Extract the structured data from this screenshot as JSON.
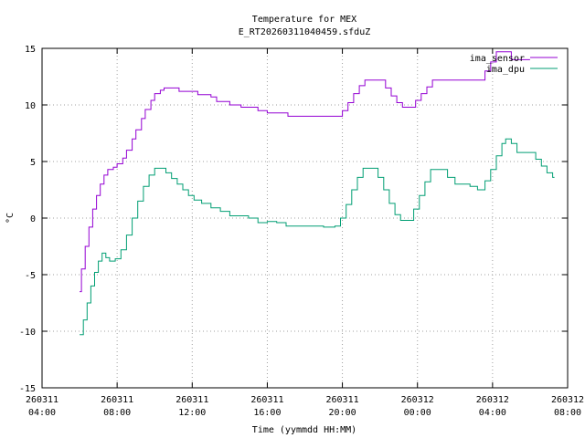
{
  "chart_data": {
    "type": "line",
    "title": "Temperature for MEX",
    "subtitle": "E_RT20260311040459.sfduZ",
    "xlabel": "Time (yymmdd HH:MM)",
    "ylabel": "°C",
    "ylim": [
      -15,
      15
    ],
    "yticks": [
      -15,
      -10,
      -5,
      0,
      5,
      10,
      15
    ],
    "ytick_labels": [
      "-15",
      "-10",
      "-5",
      "0",
      "5",
      "10",
      "15"
    ],
    "xlim": [
      4,
      32
    ],
    "xticks": [
      4,
      8,
      12,
      16,
      20,
      24,
      28,
      32
    ],
    "xtick_labels": [
      [
        "260311",
        "04:00"
      ],
      [
        "260311",
        "08:00"
      ],
      [
        "260311",
        "12:00"
      ],
      [
        "260311",
        "16:00"
      ],
      [
        "260311",
        "20:00"
      ],
      [
        "260312",
        "00:00"
      ],
      [
        "260312",
        "04:00"
      ],
      [
        "260312",
        "08:00"
      ]
    ],
    "grid": true,
    "legend_position": "top-right",
    "series": [
      {
        "name": "ima_sensor",
        "color": "#9400d3",
        "step": true,
        "points": [
          [
            6.0,
            -6.5
          ],
          [
            6.1,
            -4.5
          ],
          [
            6.3,
            -2.5
          ],
          [
            6.5,
            -0.8
          ],
          [
            6.7,
            0.8
          ],
          [
            6.9,
            2.0
          ],
          [
            7.1,
            3.0
          ],
          [
            7.3,
            3.8
          ],
          [
            7.5,
            4.3
          ],
          [
            7.8,
            4.5
          ],
          [
            8.0,
            4.8
          ],
          [
            8.3,
            5.3
          ],
          [
            8.5,
            6.0
          ],
          [
            8.8,
            7.0
          ],
          [
            9.0,
            7.8
          ],
          [
            9.3,
            8.8
          ],
          [
            9.5,
            9.6
          ],
          [
            9.8,
            10.4
          ],
          [
            10.0,
            11.0
          ],
          [
            10.3,
            11.3
          ],
          [
            10.5,
            11.5
          ],
          [
            11.0,
            11.5
          ],
          [
            11.3,
            11.2
          ],
          [
            12.0,
            11.2
          ],
          [
            12.3,
            10.9
          ],
          [
            13.0,
            10.7
          ],
          [
            13.3,
            10.3
          ],
          [
            14.0,
            10.0
          ],
          [
            14.6,
            9.8
          ],
          [
            15.5,
            9.5
          ],
          [
            16.0,
            9.3
          ],
          [
            16.8,
            9.3
          ],
          [
            17.1,
            9.0
          ],
          [
            18.5,
            9.0
          ],
          [
            19.5,
            9.0
          ],
          [
            19.9,
            9.0
          ],
          [
            20.0,
            9.5
          ],
          [
            20.3,
            10.2
          ],
          [
            20.6,
            11.0
          ],
          [
            20.9,
            11.7
          ],
          [
            21.2,
            12.2
          ],
          [
            22.0,
            12.2
          ],
          [
            22.3,
            11.5
          ],
          [
            22.6,
            10.8
          ],
          [
            22.9,
            10.2
          ],
          [
            23.2,
            9.8
          ],
          [
            23.6,
            9.8
          ],
          [
            23.9,
            10.4
          ],
          [
            24.2,
            11.0
          ],
          [
            24.5,
            11.6
          ],
          [
            24.8,
            12.2
          ],
          [
            26.0,
            12.2
          ],
          [
            27.3,
            12.2
          ],
          [
            27.6,
            13.0
          ],
          [
            27.9,
            13.8
          ],
          [
            28.2,
            14.7
          ],
          [
            28.8,
            14.7
          ],
          [
            29.0,
            14.0
          ],
          [
            29.6,
            14.0
          ],
          [
            30.0,
            14.0
          ]
        ]
      },
      {
        "name": "ima_dpu",
        "color": "#009e73",
        "step": true,
        "points": [
          [
            6.0,
            -10.3
          ],
          [
            6.2,
            -9.0
          ],
          [
            6.4,
            -7.5
          ],
          [
            6.6,
            -6.0
          ],
          [
            6.8,
            -4.8
          ],
          [
            7.0,
            -3.8
          ],
          [
            7.2,
            -3.1
          ],
          [
            7.4,
            -3.5
          ],
          [
            7.6,
            -3.8
          ],
          [
            7.9,
            -3.6
          ],
          [
            8.2,
            -2.8
          ],
          [
            8.5,
            -1.5
          ],
          [
            8.8,
            0.0
          ],
          [
            9.1,
            1.5
          ],
          [
            9.4,
            2.8
          ],
          [
            9.7,
            3.8
          ],
          [
            10.0,
            4.4
          ],
          [
            10.3,
            4.4
          ],
          [
            10.6,
            4.0
          ],
          [
            10.9,
            3.5
          ],
          [
            11.2,
            3.0
          ],
          [
            11.5,
            2.5
          ],
          [
            11.8,
            2.0
          ],
          [
            12.1,
            1.6
          ],
          [
            12.5,
            1.3
          ],
          [
            13.0,
            0.9
          ],
          [
            13.5,
            0.6
          ],
          [
            14.0,
            0.2
          ],
          [
            15.0,
            0.0
          ],
          [
            15.5,
            -0.4
          ],
          [
            16.0,
            -0.3
          ],
          [
            16.5,
            -0.4
          ],
          [
            17.0,
            -0.7
          ],
          [
            18.5,
            -0.7
          ],
          [
            19.0,
            -0.8
          ],
          [
            19.6,
            -0.7
          ],
          [
            19.9,
            0.0
          ],
          [
            20.2,
            1.2
          ],
          [
            20.5,
            2.5
          ],
          [
            20.8,
            3.6
          ],
          [
            21.1,
            4.4
          ],
          [
            21.6,
            4.4
          ],
          [
            21.9,
            3.6
          ],
          [
            22.2,
            2.5
          ],
          [
            22.5,
            1.3
          ],
          [
            22.8,
            0.3
          ],
          [
            23.1,
            -0.2
          ],
          [
            23.5,
            -0.2
          ],
          [
            23.8,
            0.8
          ],
          [
            24.1,
            2.0
          ],
          [
            24.4,
            3.2
          ],
          [
            24.7,
            4.3
          ],
          [
            25.3,
            4.3
          ],
          [
            25.6,
            3.6
          ],
          [
            26.0,
            3.0
          ],
          [
            26.8,
            2.8
          ],
          [
            27.2,
            2.5
          ],
          [
            27.6,
            3.3
          ],
          [
            27.9,
            4.3
          ],
          [
            28.2,
            5.5
          ],
          [
            28.5,
            6.6
          ],
          [
            28.7,
            7.0
          ],
          [
            29.0,
            6.6
          ],
          [
            29.3,
            5.8
          ],
          [
            30.0,
            5.8
          ],
          [
            30.3,
            5.2
          ],
          [
            30.6,
            4.6
          ],
          [
            30.9,
            4.0
          ],
          [
            31.2,
            3.6
          ],
          [
            31.3,
            3.6
          ]
        ]
      }
    ]
  }
}
